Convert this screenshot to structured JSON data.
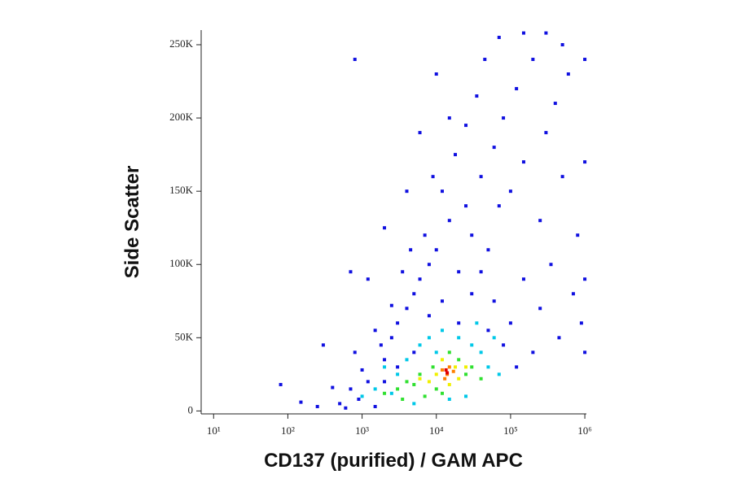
{
  "chart_data": {
    "type": "scatter",
    "x_label": "CD137 (purified) / GAM APC",
    "y_label": "Side Scatter",
    "xscale": "log",
    "xlim": [
      6.8,
      1050000
    ],
    "ylim": [
      -2000,
      260000
    ],
    "xticks": [
      {
        "value": 10,
        "label": "10¹"
      },
      {
        "value": 100,
        "label": "10²"
      },
      {
        "value": 1000,
        "label": "10³"
      },
      {
        "value": 10000,
        "label": "10⁴"
      },
      {
        "value": 100000,
        "label": "10⁵"
      },
      {
        "value": 1000000,
        "label": "10⁶"
      }
    ],
    "yticks": [
      0,
      {
        "value": 50000,
        "label": "50K"
      },
      {
        "value": 100000,
        "label": "100K"
      },
      {
        "value": 150000,
        "label": "150K"
      },
      {
        "value": 200000,
        "label": "200K"
      },
      {
        "value": 250000,
        "label": "250K"
      }
    ],
    "grid": false,
    "series": [
      {
        "color": "#1010e0",
        "x": [
          500,
          700,
          900,
          1200,
          1500,
          2000,
          2500,
          3000,
          1800,
          4000,
          5000,
          6000,
          8000,
          10000,
          12000,
          15000,
          20000,
          25000,
          30000,
          40000,
          50000,
          60000,
          70000,
          80000,
          100000,
          120000,
          150000,
          200000,
          250000,
          300000,
          400000,
          500000,
          600000,
          800000,
          900000,
          700000,
          350000,
          450000,
          250000,
          150000,
          100000,
          60000,
          40000,
          20000,
          30000,
          8000,
          5000,
          3000,
          2000,
          1000,
          600,
          800,
          1500,
          3500,
          7000,
          12000,
          18000,
          25000,
          35000,
          45000,
          70000,
          150000,
          300000,
          500000,
          1000000,
          1000000,
          1000000,
          1000000,
          200000,
          120000,
          80000,
          50000,
          2500,
          1200,
          400,
          300,
          150,
          80,
          250,
          4500,
          9000,
          6000,
          15000,
          10000,
          700,
          2000,
          4000,
          800
        ],
        "y": [
          5000,
          15000,
          8000,
          20000,
          3000,
          35000,
          50000,
          60000,
          45000,
          70000,
          80000,
          90000,
          100000,
          110000,
          75000,
          130000,
          95000,
          140000,
          120000,
          160000,
          110000,
          180000,
          140000,
          200000,
          150000,
          220000,
          170000,
          240000,
          130000,
          190000,
          210000,
          160000,
          230000,
          120000,
          60000,
          80000,
          100000,
          50000,
          70000,
          90000,
          60000,
          75000,
          95000,
          60000,
          80000,
          65000,
          40000,
          30000,
          20000,
          28000,
          2000,
          40000,
          55000,
          95000,
          120000,
          150000,
          175000,
          195000,
          215000,
          240000,
          255000,
          258000,
          258000,
          250000,
          240000,
          170000,
          40000,
          90000,
          40000,
          30000,
          45000,
          55000,
          72000,
          90000,
          16000,
          45000,
          6000,
          18000,
          3000,
          110000,
          160000,
          190000,
          200000,
          230000,
          95000,
          125000,
          150000,
          240000
        ]
      },
      {
        "color": "#00c8e8",
        "x": [
          1000,
          1500,
          2500,
          3000,
          4000,
          6000,
          8000,
          12000,
          20000,
          30000,
          40000,
          50000,
          70000,
          25000,
          15000,
          5000,
          2000,
          10000,
          35000,
          60000
        ],
        "y": [
          10000,
          15000,
          12000,
          25000,
          35000,
          45000,
          50000,
          55000,
          50000,
          45000,
          40000,
          30000,
          25000,
          10000,
          8000,
          5000,
          30000,
          40000,
          60000,
          50000
        ]
      },
      {
        "color": "#30e030",
        "x": [
          2000,
          3000,
          4000,
          5000,
          6000,
          7000,
          9000,
          10000,
          20000,
          25000,
          30000,
          15000,
          3500,
          12000,
          40000
        ],
        "y": [
          12000,
          15000,
          20000,
          18000,
          25000,
          10000,
          30000,
          15000,
          35000,
          25000,
          30000,
          40000,
          8000,
          12000,
          22000
        ]
      },
      {
        "color": "#f0f000",
        "x": [
          8000,
          10000,
          12000,
          18000,
          20000,
          15000,
          25000,
          6000
        ],
        "y": [
          20000,
          25000,
          35000,
          30000,
          22000,
          18000,
          30000,
          22000
        ]
      },
      {
        "color": "#ff8000",
        "x": [
          12000,
          14000,
          15000,
          13000,
          17000
        ],
        "y": [
          28000,
          25000,
          30000,
          22000,
          27000
        ]
      },
      {
        "color": "#e00000",
        "x": [
          14000,
          13500
        ],
        "y": [
          26000,
          28000
        ]
      }
    ]
  }
}
